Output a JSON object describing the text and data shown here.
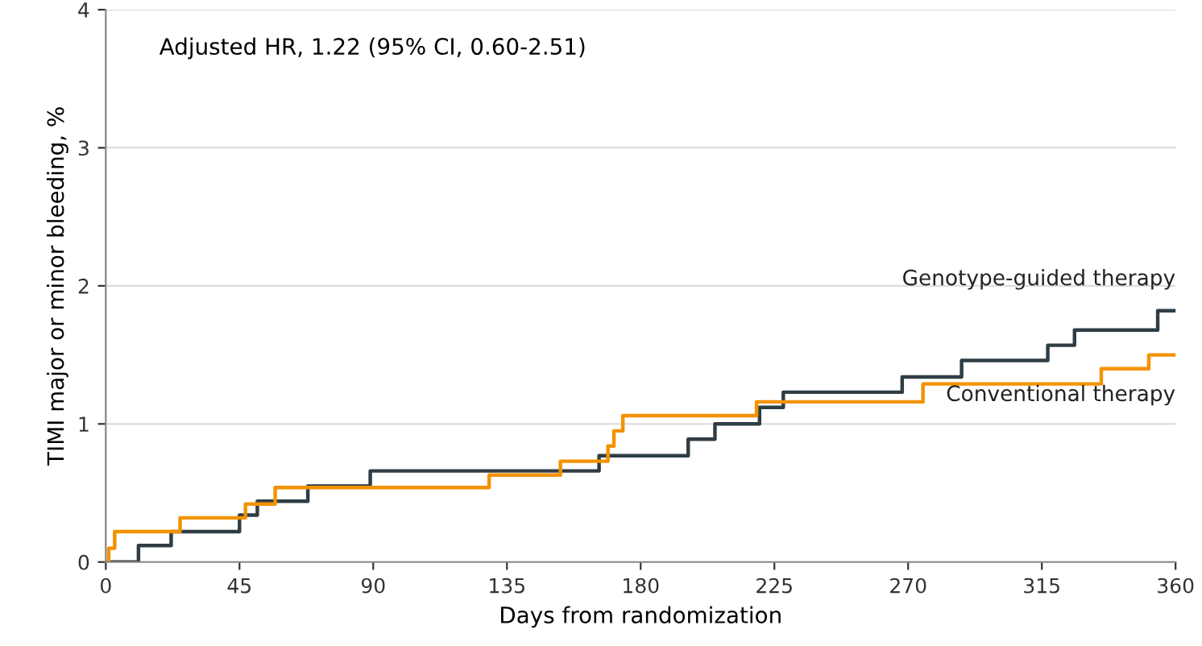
{
  "chart_data": {
    "type": "step",
    "xlabel": "Days from randomization",
    "ylabel": "TIMI major or minor bleeding, %",
    "annotations": [
      "Adjusted HR, 1.22 (95% CI, 0.60-2.51)"
    ],
    "xlim": [
      0,
      360
    ],
    "ylim": [
      0,
      4
    ],
    "xticks": [
      0,
      45,
      90,
      135,
      180,
      225,
      270,
      315,
      360
    ],
    "yticks": [
      0,
      1,
      2,
      3,
      4
    ],
    "grid": "y",
    "legend": false,
    "series": [
      {
        "name": "Genotype-guided therapy",
        "color": "#2f3d45",
        "x": [
          0,
          11,
          22,
          45,
          51,
          68,
          89,
          166,
          196,
          205,
          220,
          228,
          268,
          288,
          317,
          326,
          354,
          360
        ],
        "values": [
          0,
          0.12,
          0.22,
          0.34,
          0.44,
          0.55,
          0.66,
          0.77,
          0.89,
          1.0,
          1.12,
          1.23,
          1.34,
          1.46,
          1.57,
          1.68,
          1.82,
          1.82
        ]
      },
      {
        "name": "Conventional therapy",
        "color": "#f39200",
        "x": [
          0,
          1,
          3,
          25,
          47,
          57,
          129,
          153,
          169,
          171,
          174,
          219,
          275,
          335,
          351,
          360
        ],
        "values": [
          0,
          0.1,
          0.22,
          0.32,
          0.42,
          0.54,
          0.63,
          0.73,
          0.84,
          0.95,
          1.06,
          1.16,
          1.29,
          1.4,
          1.5,
          1.5
        ]
      }
    ]
  }
}
